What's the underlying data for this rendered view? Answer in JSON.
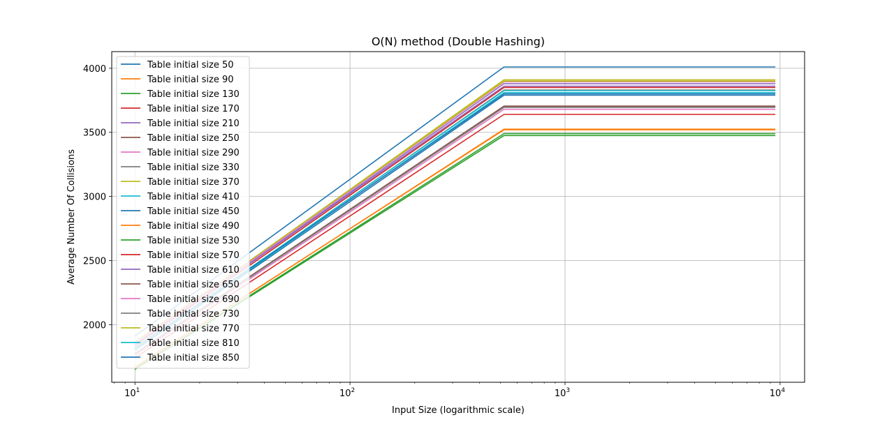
{
  "chart_data": {
    "type": "line",
    "title": "O(N) method (Double Hashing)",
    "xlabel": "Input Size (logarithmic scale)",
    "ylabel": "Average Number Of Collisions",
    "x_scale": "log",
    "xlim": [
      7.8,
      13000
    ],
    "ylim": [
      1550,
      4130
    ],
    "x": [
      10,
      520,
      9500
    ],
    "x_ticks": [
      {
        "value": 10,
        "base": "10",
        "exp": "1"
      },
      {
        "value": 100,
        "base": "10",
        "exp": "2"
      },
      {
        "value": 1000,
        "base": "10",
        "exp": "3"
      },
      {
        "value": 10000,
        "base": "10",
        "exp": "4"
      }
    ],
    "y_ticks": [
      2000,
      2500,
      3000,
      3500,
      4000
    ],
    "grid": true,
    "legend_position": "upper-left",
    "series": [
      {
        "name": "Table initial size 50",
        "color": "#1f77b4",
        "values": [
          1910,
          4010,
          4010
        ]
      },
      {
        "name": "Table initial size 90",
        "color": "#ff7f0e",
        "values": [
          1670,
          3520,
          3520
        ]
      },
      {
        "name": "Table initial size 130",
        "color": "#2ca02c",
        "values": [
          1655,
          3490,
          3490
        ]
      },
      {
        "name": "Table initial size 170",
        "color": "#d62728",
        "values": [
          1740,
          3640,
          3640
        ]
      },
      {
        "name": "Table initial size 210",
        "color": "#9467bd",
        "values": [
          1850,
          3860,
          3860
        ]
      },
      {
        "name": "Table initial size 250",
        "color": "#8c564b",
        "values": [
          1770,
          3700,
          3700
        ]
      },
      {
        "name": "Table initial size 290",
        "color": "#e377c2",
        "values": [
          1760,
          3680,
          3680
        ]
      },
      {
        "name": "Table initial size 330",
        "color": "#7f7f7f",
        "values": [
          1810,
          3830,
          3830
        ]
      },
      {
        "name": "Table initial size 370",
        "color": "#bcbd22",
        "values": [
          1860,
          3910,
          3910
        ]
      },
      {
        "name": "Table initial size 410",
        "color": "#17becf",
        "values": [
          1805,
          3810,
          3810
        ]
      },
      {
        "name": "Table initial size 450",
        "color": "#1f77b4",
        "values": [
          1800,
          3790,
          3790
        ]
      },
      {
        "name": "Table initial size 490",
        "color": "#ff7f0e",
        "values": [
          1665,
          3525,
          3525
        ]
      },
      {
        "name": "Table initial size 530",
        "color": "#2ca02c",
        "values": [
          1650,
          3475,
          3475
        ]
      },
      {
        "name": "Table initial size 570",
        "color": "#d62728",
        "values": [
          1835,
          3850,
          3850
        ]
      },
      {
        "name": "Table initial size 610",
        "color": "#9467bd",
        "values": [
          1845,
          3880,
          3880
        ]
      },
      {
        "name": "Table initial size 650",
        "color": "#8c564b",
        "values": [
          1775,
          3705,
          3705
        ]
      },
      {
        "name": "Table initial size 690",
        "color": "#e377c2",
        "values": [
          1855,
          3895,
          3895
        ]
      },
      {
        "name": "Table initial size 730",
        "color": "#7f7f7f",
        "values": [
          1770,
          3695,
          3695
        ]
      },
      {
        "name": "Table initial size 770",
        "color": "#bcbd22",
        "values": [
          1865,
          3900,
          3900
        ]
      },
      {
        "name": "Table initial size 810",
        "color": "#17becf",
        "values": [
          1815,
          3825,
          3825
        ]
      },
      {
        "name": "Table initial size 850",
        "color": "#1f77b4",
        "values": [
          1820,
          3800,
          3800
        ]
      }
    ]
  }
}
